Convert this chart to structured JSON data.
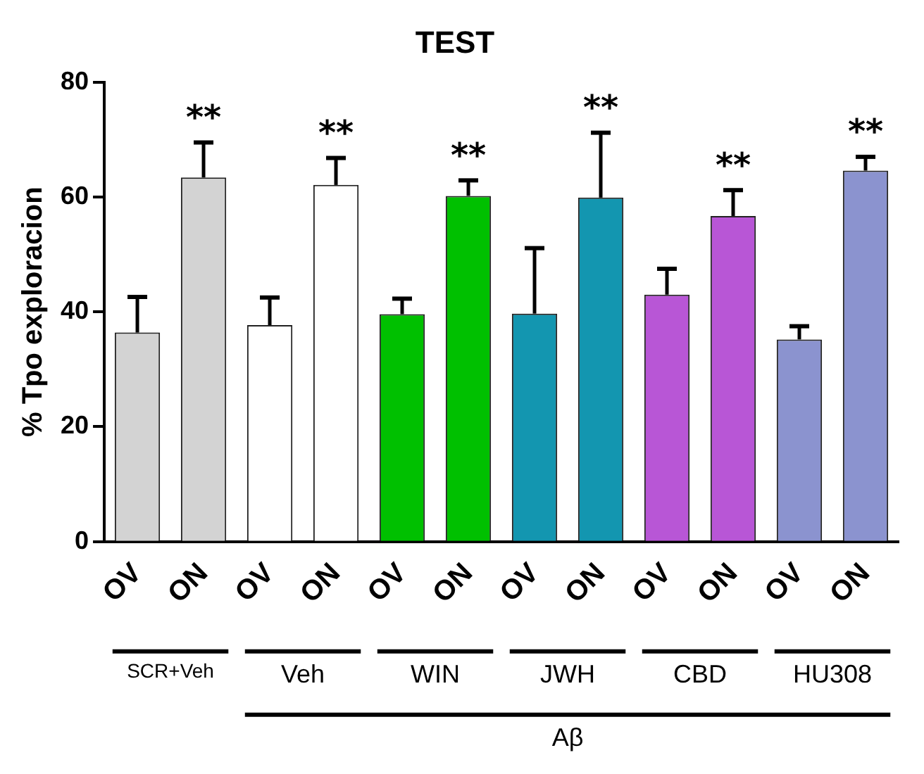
{
  "chart_data": {
    "type": "bar",
    "title": "TEST",
    "ylabel": "% Tpo exploracion",
    "categories": [
      "OV",
      "ON",
      "OV",
      "ON",
      "OV",
      "ON",
      "OV",
      "ON",
      "OV",
      "ON",
      "OV",
      "ON"
    ],
    "values": [
      36.4,
      63.4,
      37.7,
      62.1,
      39.6,
      60.2,
      39.7,
      59.9,
      43.0,
      56.7,
      35.2,
      64.6
    ],
    "errors": [
      [
        36.4,
        42.6
      ],
      [
        63.4,
        69.5
      ],
      [
        37.7,
        42.5
      ],
      [
        62.1,
        66.8
      ],
      [
        39.6,
        42.3
      ],
      [
        60.2,
        62.9
      ],
      [
        39.7,
        51.1
      ],
      [
        59.9,
        71.2
      ],
      [
        43.0,
        47.5
      ],
      [
        56.7,
        61.2
      ],
      [
        35.2,
        37.5
      ],
      [
        64.6,
        67.0
      ]
    ],
    "colors": [
      "#d3d3d3",
      "#d3d3d3",
      "#ffffff",
      "#ffffff",
      "#00c000",
      "#00c000",
      "#1396b0",
      "#1396b0",
      "#b856d6",
      "#b856d6",
      "#8b93cf",
      "#8b93cf"
    ],
    "ylim": [
      0,
      80
    ],
    "yticks": [
      0,
      20,
      40,
      60,
      80
    ],
    "annotations": [
      "**",
      "**",
      "**",
      "**",
      "**",
      "**",
      "SCR+Veh",
      "Veh",
      "WIN",
      "JWH",
      "CBD",
      "HU308",
      "Aβ"
    ]
  }
}
